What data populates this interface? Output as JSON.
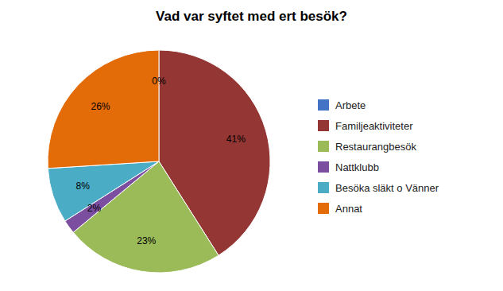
{
  "chart_data": {
    "type": "pie",
    "title": "Vad var syftet med ert besök?",
    "categories": [
      "Arbete",
      "Familjeaktiviteter",
      "Restaurangbesök",
      "Nattklubb",
      "Besöka släkt o Vänner",
      "Annat"
    ],
    "values": [
      0,
      41,
      23,
      2,
      8,
      26
    ],
    "value_labels": [
      "0%",
      "41%",
      "23%",
      "2%",
      "8%",
      "26%"
    ],
    "colors": [
      "#4472C4",
      "#943634",
      "#9BBB59",
      "#7B4EA0",
      "#4BACC6",
      "#E36C09"
    ],
    "data_labels": true,
    "legend": "right"
  }
}
